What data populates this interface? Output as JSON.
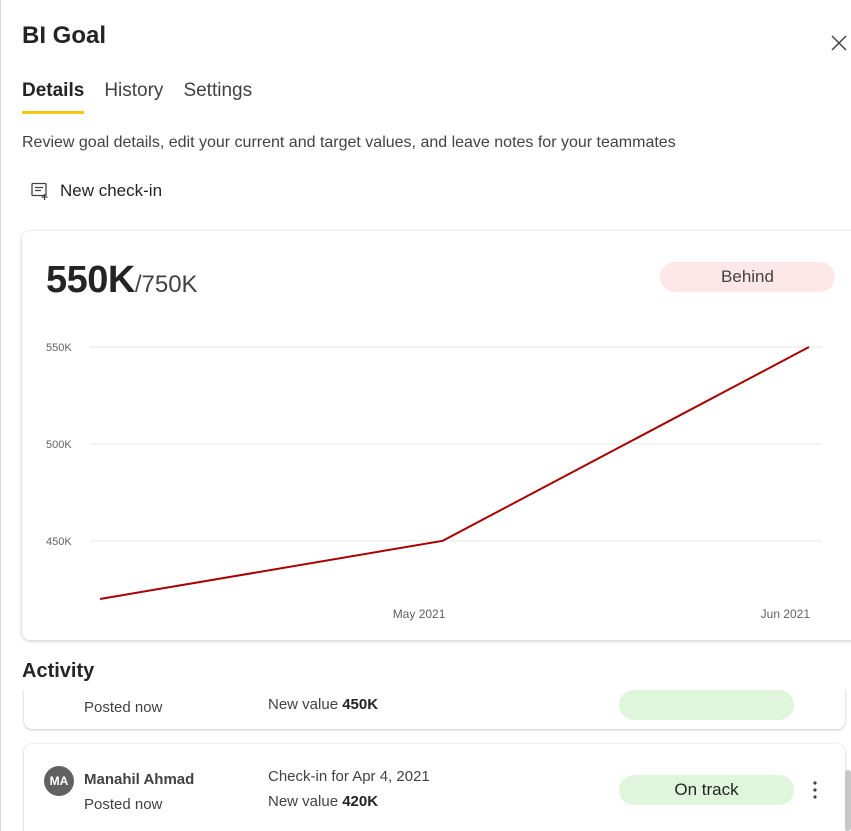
{
  "panel": {
    "title": "BI Goal",
    "close_icon": "close-icon"
  },
  "tabs": [
    {
      "label": "Details",
      "active": true
    },
    {
      "label": "History",
      "active": false
    },
    {
      "label": "Settings",
      "active": false
    }
  ],
  "description": "Review goal details, edit your current and target values, and leave notes for your teammates",
  "new_checkin": {
    "icon": "note-add-icon",
    "label": "New check-in"
  },
  "goal_card": {
    "current_value": "550K",
    "target_value": "/750K",
    "status": "Behind",
    "status_color": "#fde7e9",
    "line_color": "#a80000"
  },
  "chart_data": {
    "type": "line",
    "x": [
      "2021-04-04",
      "2021-05-03",
      "2021-06-03"
    ],
    "series": [
      {
        "values": [
          420,
          450,
          550
        ]
      }
    ],
    "x_tick_labels": [
      "May 2021",
      "Jun 2021"
    ],
    "x_tick_dates": [
      "2021-05-01",
      "2021-06-01"
    ],
    "y_ticks": [
      450,
      500,
      550
    ],
    "y_tick_labels": [
      "450K",
      "500K",
      "550K"
    ],
    "ylim": [
      420,
      550
    ],
    "grid": true,
    "legend": "none"
  },
  "activity": {
    "title": "Activity",
    "items": [
      {
        "posted": "Posted now",
        "new_value_label": "New value",
        "new_value": "450K"
      },
      {
        "avatar_initials": "MA",
        "author": "Manahil Ahmad",
        "posted": "Posted now",
        "checkin_label": "Check-in for Apr 4, 2021",
        "new_value_label": "New value",
        "new_value": "420K",
        "status": "On track",
        "status_color": "#dff6dd",
        "more_icon": "more-vertical-icon"
      }
    ]
  }
}
